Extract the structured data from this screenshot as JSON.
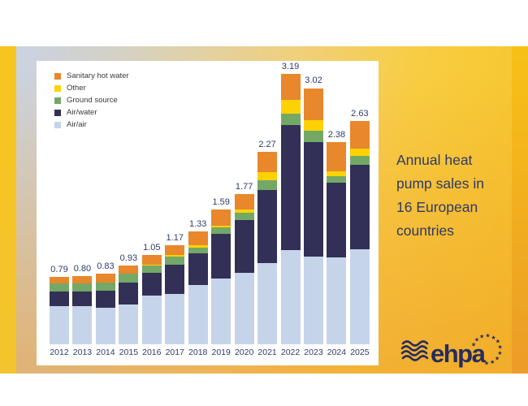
{
  "title": {
    "text": "Annual heat pump sales in 16 European countries"
  },
  "logo": {
    "text": "ehpa",
    "star_count": 11,
    "color": "#252C5E"
  },
  "colors": {
    "slide_top_left": "#C8D3E7",
    "slide_gold": "#F8CD42",
    "slide_orange": "#F0A02C",
    "edge_gold": "#F7C51F",
    "panel": "#FFFFFF",
    "axis_text": "#2F3B6B",
    "caption_text": "#2E3A64"
  },
  "chart_data": {
    "type": "bar",
    "stacked": true,
    "title": "",
    "xlabel": "",
    "ylabel": "",
    "categories": [
      "2012",
      "2013",
      "2014",
      "2015",
      "2016",
      "2017",
      "2018",
      "2019",
      "2020",
      "2021",
      "2022",
      "2023",
      "2024",
      "2025"
    ],
    "totals": [
      "0.79",
      "0.80",
      "0.83",
      "0.93",
      "1.05",
      "1.17",
      "1.33",
      "1.59",
      "1.77",
      "2.27",
      "3.19",
      "3.02",
      "2.38",
      "2.63"
    ],
    "series": [
      {
        "name": "Air/air",
        "color": "#C6D4EA",
        "values": [
          0.45,
          0.45,
          0.43,
          0.47,
          0.57,
          0.59,
          0.7,
          0.78,
          0.84,
          0.96,
          1.11,
          1.03,
          1.02,
          1.12
        ]
      },
      {
        "name": "Air/water",
        "color": "#323056",
        "values": [
          0.17,
          0.17,
          0.2,
          0.26,
          0.27,
          0.35,
          0.37,
          0.52,
          0.62,
          0.86,
          1.47,
          1.35,
          0.88,
          1.0
        ]
      },
      {
        "name": "Ground source",
        "color": "#74A866",
        "values": [
          0.1,
          0.1,
          0.1,
          0.1,
          0.09,
          0.09,
          0.07,
          0.08,
          0.09,
          0.11,
          0.14,
          0.14,
          0.08,
          0.1
        ]
      },
      {
        "name": "Other",
        "color": "#FDD205",
        "values": [
          0.0,
          0.0,
          0.0,
          0.0,
          0.01,
          0.02,
          0.03,
          0.02,
          0.04,
          0.1,
          0.16,
          0.12,
          0.06,
          0.09
        ]
      },
      {
        "name": "Sanitary hot water",
        "color": "#E8872C",
        "values": [
          0.07,
          0.08,
          0.1,
          0.1,
          0.11,
          0.12,
          0.16,
          0.19,
          0.18,
          0.24,
          0.31,
          0.38,
          0.34,
          0.32
        ]
      }
    ],
    "legend": [
      "Sanitary hot water",
      "Other",
      "Ground source",
      "Air/water",
      "Air/air"
    ],
    "legend_position": "top-left",
    "grid": false
  }
}
